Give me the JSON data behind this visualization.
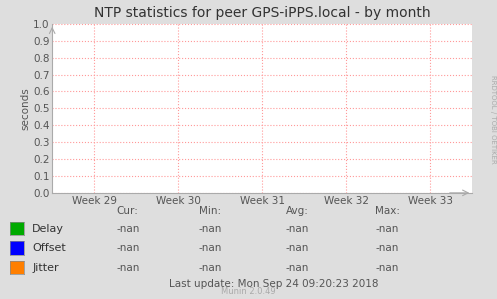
{
  "title": "NTP statistics for peer GPS-iPPS.local - by month",
  "ylabel": "seconds",
  "ylim": [
    0.0,
    1.0
  ],
  "yticks": [
    0.0,
    0.1,
    0.2,
    0.3,
    0.4,
    0.5,
    0.6,
    0.7,
    0.8,
    0.9,
    1.0
  ],
  "xtick_labels": [
    "Week 29",
    "Week 30",
    "Week 31",
    "Week 32",
    "Week 33"
  ],
  "xtick_positions": [
    0,
    1,
    2,
    3,
    4
  ],
  "xlim": [
    -0.5,
    4.5
  ],
  "bg_color": "#dedede",
  "plot_bg_color": "#ffffff",
  "grid_color": "#ff9999",
  "legend_items": [
    {
      "label": "Delay",
      "color": "#00aa00"
    },
    {
      "label": "Offset",
      "color": "#0000ff"
    },
    {
      "label": "Jitter",
      "color": "#ff7f00"
    }
  ],
  "table_headers": [
    "Cur:",
    "Min:",
    "Avg:",
    "Max:"
  ],
  "table_rows": [
    [
      "-nan",
      "-nan",
      "-nan",
      "-nan"
    ],
    [
      "-nan",
      "-nan",
      "-nan",
      "-nan"
    ],
    [
      "-nan",
      "-nan",
      "-nan",
      "-nan"
    ]
  ],
  "last_update": "Last update: Mon Sep 24 09:20:23 2018",
  "munin_version": "Munin 2.0.49",
  "watermark": "RRDTOOL / TOBI OETIKER",
  "title_fontsize": 10,
  "axis_fontsize": 7.5,
  "legend_fontsize": 8,
  "table_fontsize": 7.5,
  "watermark_fontsize": 5
}
